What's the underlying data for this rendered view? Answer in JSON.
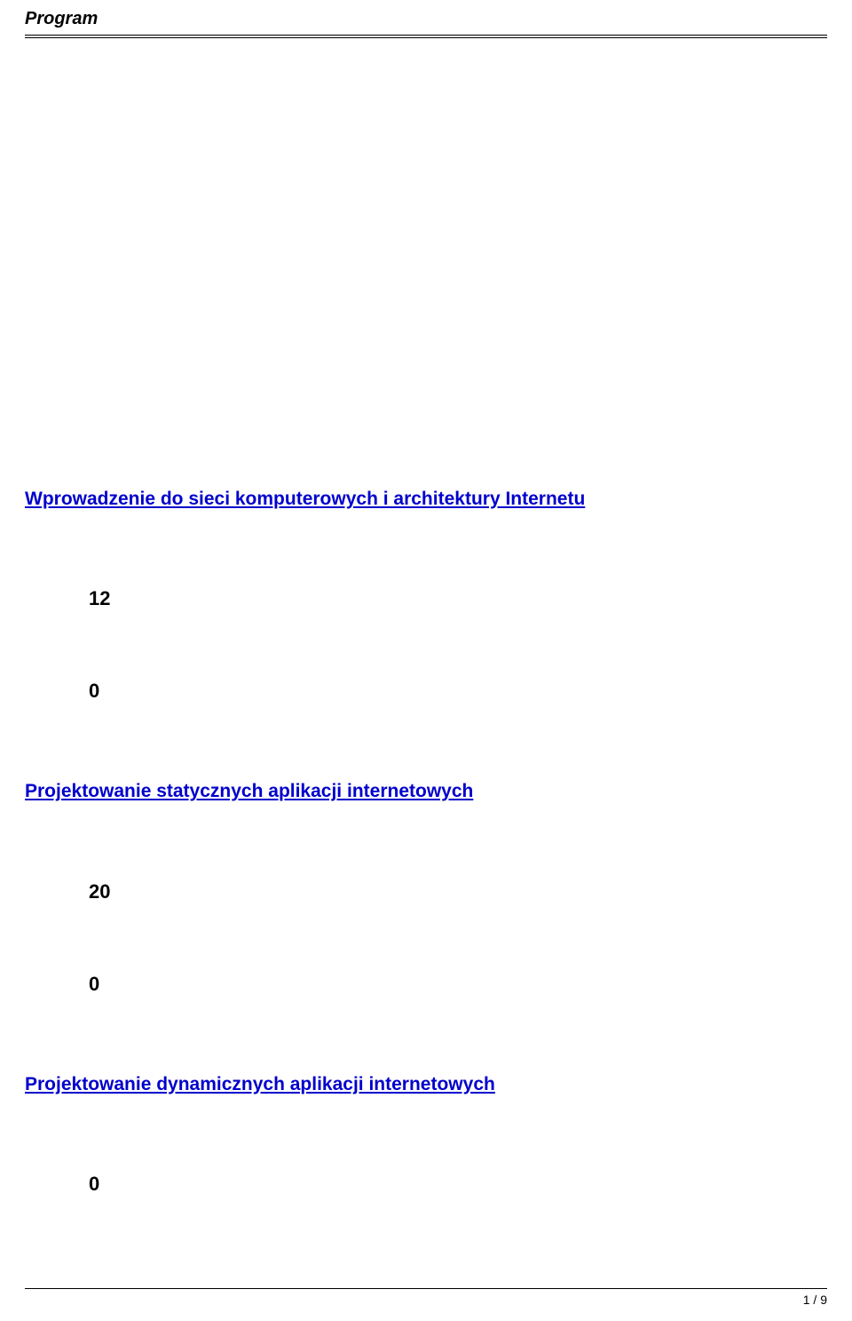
{
  "header": {
    "title": "Program"
  },
  "sections": [
    {
      "title": "Wprowadzenie do sieci komputerowych i architektury Internetu",
      "v1": "12",
      "v2": "0"
    },
    {
      "title": "Projektowanie statycznych aplikacji internetowych",
      "v1": "20",
      "v2": "0"
    },
    {
      "title": "Projektowanie dynamicznych aplikacji internetowych",
      "v1": "0"
    }
  ],
  "footer": {
    "page": "1 / 9"
  },
  "style": {
    "link_color": "#0000cc",
    "text_color": "#000000",
    "bg_color": "#ffffff",
    "header_fontsize": 20,
    "link_fontsize": 21,
    "num_fontsize": 22,
    "footer_fontsize": 14
  }
}
